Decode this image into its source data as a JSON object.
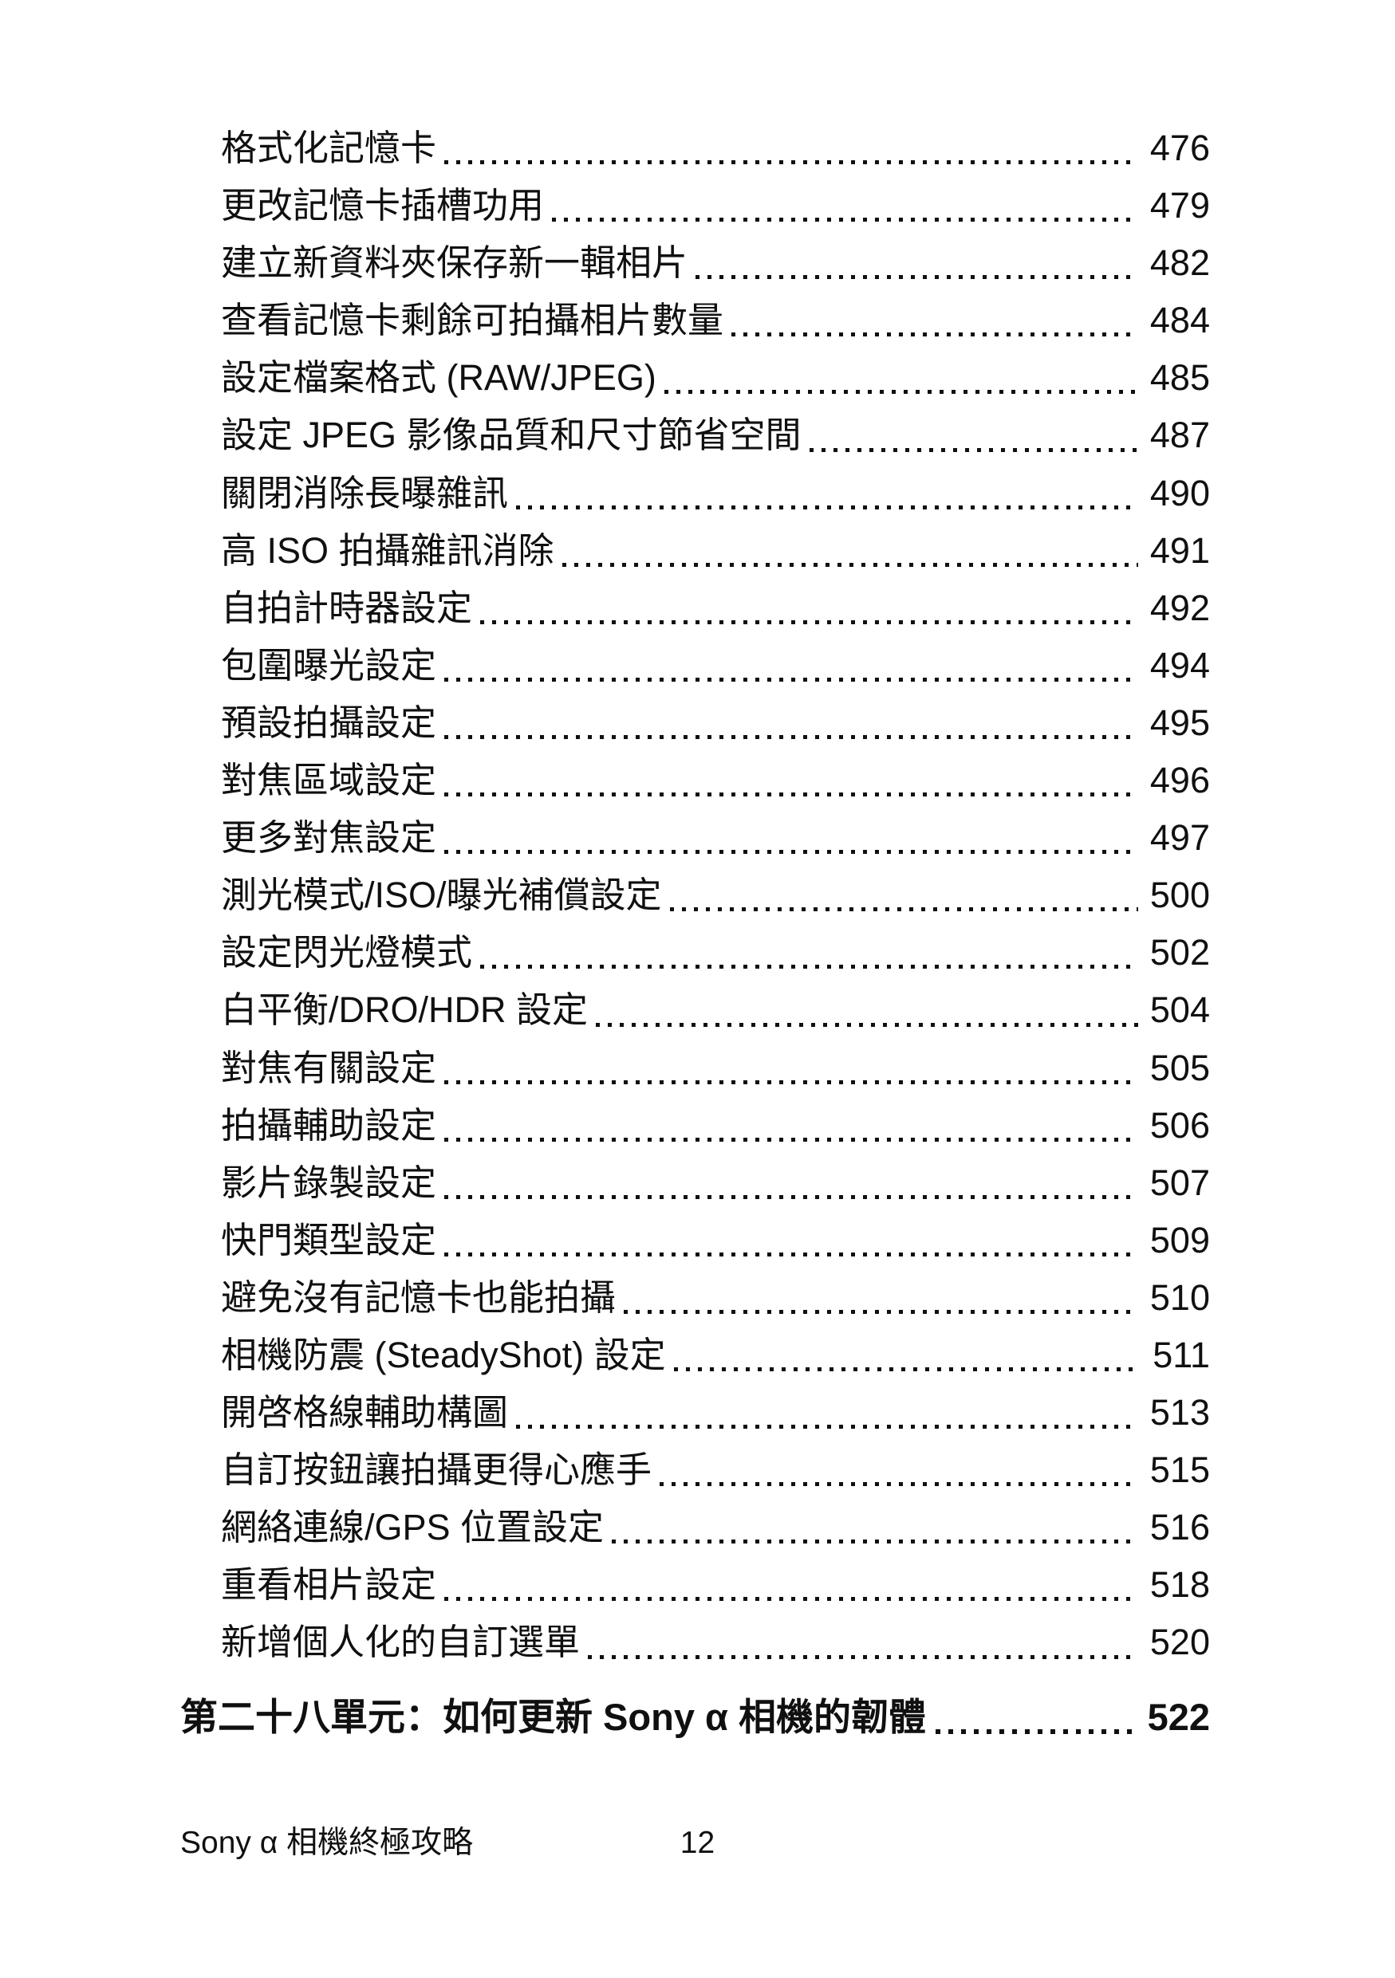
{
  "toc": {
    "entries": [
      {
        "title": "格式化記憶卡",
        "page": "476"
      },
      {
        "title": "更改記憶卡插槽功用",
        "page": "479"
      },
      {
        "title": "建立新資料夾保存新一輯相片",
        "page": "482"
      },
      {
        "title": "查看記憶卡剩餘可拍攝相片數量",
        "page": "484"
      },
      {
        "title": "設定檔案格式 (RAW/JPEG)",
        "page": "485"
      },
      {
        "title": "設定 JPEG 影像品質和尺寸節省空間",
        "page": "487"
      },
      {
        "title": "關閉消除長曝雜訊",
        "page": "490"
      },
      {
        "title": "高 ISO 拍攝雜訊消除",
        "page": "491"
      },
      {
        "title": "自拍計時器設定",
        "page": "492"
      },
      {
        "title": "包圍曝光設定",
        "page": "494"
      },
      {
        "title": "預設拍攝設定",
        "page": "495"
      },
      {
        "title": "對焦區域設定",
        "page": "496"
      },
      {
        "title": "更多對焦設定",
        "page": "497"
      },
      {
        "title": "測光模式/ISO/曝光補償設定",
        "page": "500"
      },
      {
        "title": "設定閃光燈模式",
        "page": "502"
      },
      {
        "title": "白平衡/DRO/HDR 設定",
        "page": "504"
      },
      {
        "title": "對焦有關設定",
        "page": "505"
      },
      {
        "title": "拍攝輔助設定",
        "page": "506"
      },
      {
        "title": "影片錄製設定",
        "page": "507"
      },
      {
        "title": "快門類型設定",
        "page": "509"
      },
      {
        "title": "避免沒有記憶卡也能拍攝",
        "page": "510"
      },
      {
        "title": "相機防震 (SteadyShot) 設定",
        "page": "511"
      },
      {
        "title": "開啓格線輔助構圖",
        "page": "513"
      },
      {
        "title": "自訂按鈕讓拍攝更得心應手",
        "page": "515"
      },
      {
        "title": "網絡連線/GPS 位置設定",
        "page": "516"
      },
      {
        "title": "重看相片設定",
        "page": "518"
      },
      {
        "title": "新增個人化的自訂選單",
        "page": "520"
      }
    ],
    "chapter": {
      "title": "第二十八單元：如何更新 Sony α 相機的韌體",
      "page": "522"
    }
  },
  "footer": {
    "book_title": "Sony α 相機終極攻略",
    "page_number": "12"
  },
  "colors": {
    "ink": "#101010",
    "paper": "#ffffff"
  }
}
